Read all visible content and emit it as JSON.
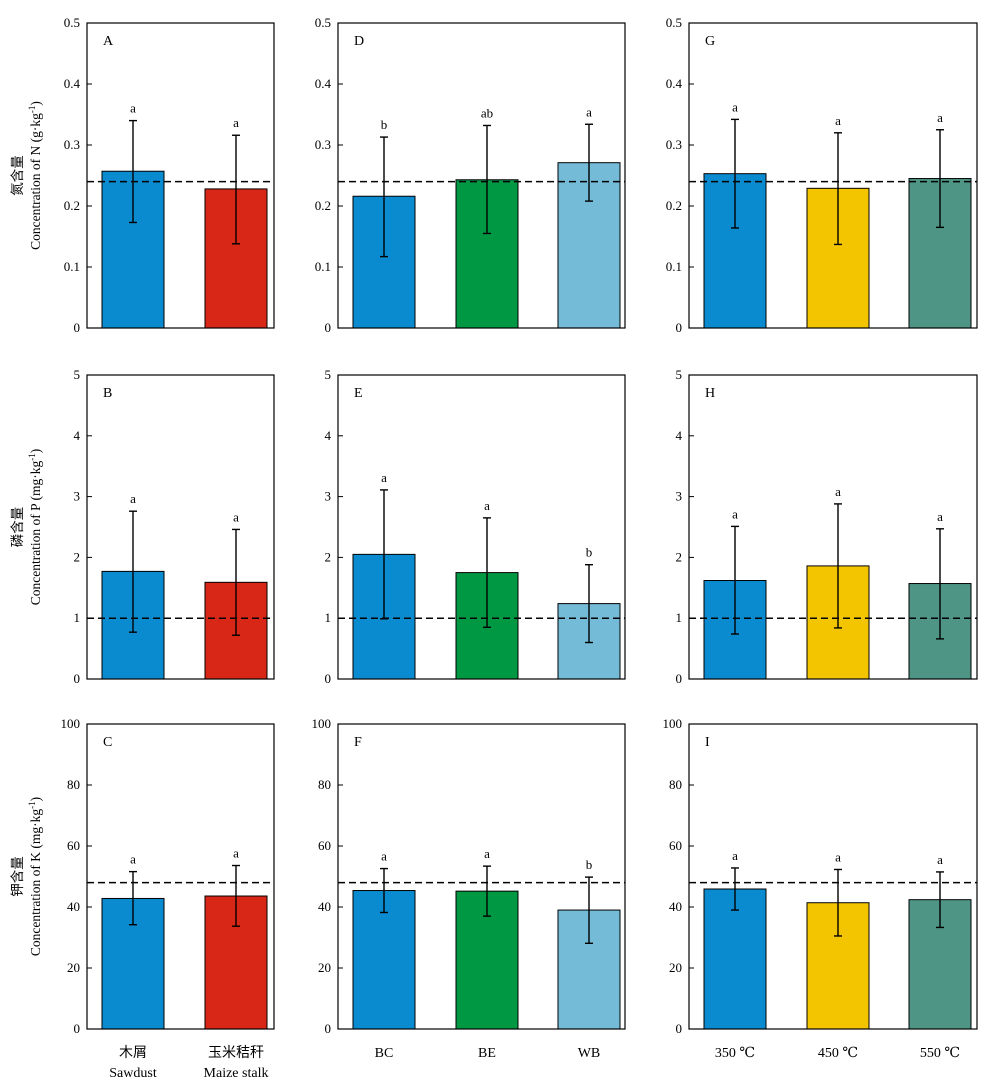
{
  "chart_data": {
    "type": "bar",
    "layout": "3x3 grid of bar charts; rows share a response variable, columns share a grouping factor",
    "colors": {
      "sawdust": "#0A8ACF",
      "maize_stalk": "#D92717",
      "BC": "#0A8ACF",
      "BE": "#009843",
      "WB": "#74BBD8",
      "350": "#0A8ACF",
      "450": "#F3C400",
      "550": "#4E9585"
    },
    "rows": [
      {
        "ylabel_cn": "氮含量",
        "ylabel_en": "Concentration of N (g·kg",
        "ylabel_sup": "-1",
        "ylabel_tail": ")",
        "ylim": [
          0,
          0.5
        ],
        "yticks": [
          "0",
          "0.1",
          "0.2",
          "0.3",
          "0.4",
          "0.5"
        ],
        "reference_line": 0.24
      },
      {
        "ylabel_cn": "磷含量",
        "ylabel_en": "Concentration of P (mg·kg",
        "ylabel_sup": "-1",
        "ylabel_tail": ")",
        "ylim": [
          0,
          5
        ],
        "yticks": [
          "0",
          "1",
          "2",
          "3",
          "4",
          "5"
        ],
        "reference_line": 1.0
      },
      {
        "ylabel_cn": "钾含量",
        "ylabel_en": "Concentration of K (mg·kg",
        "ylabel_sup": "-1",
        "ylabel_tail": ")",
        "ylim": [
          0,
          100
        ],
        "yticks": [
          "0",
          "20",
          "40",
          "60",
          "80",
          "100"
        ],
        "reference_line": 48
      }
    ],
    "columns": [
      {
        "categories": [
          {
            "cn": "木屑",
            "en": "Sawdust",
            "color_key": "sawdust"
          },
          {
            "cn": "玉米秸秆",
            "en": "Maize stalk",
            "color_key": "maize_stalk"
          }
        ]
      },
      {
        "categories": [
          {
            "cn": "",
            "en": "BC",
            "color_key": "BC"
          },
          {
            "cn": "",
            "en": "BE",
            "color_key": "BE"
          },
          {
            "cn": "",
            "en": "WB",
            "color_key": "WB"
          }
        ]
      },
      {
        "categories": [
          {
            "cn": "",
            "en": "350 ℃",
            "color_key": "350"
          },
          {
            "cn": "",
            "en": "450 ℃",
            "color_key": "450"
          },
          {
            "cn": "",
            "en": "550 ℃",
            "color_key": "550"
          }
        ]
      }
    ],
    "panels": [
      {
        "letter": "A",
        "row": 0,
        "col": 0,
        "values": [
          0.257,
          0.228
        ],
        "err_low": [
          0.173,
          0.138
        ],
        "err_high": [
          0.34,
          0.316
        ],
        "sig": [
          "a",
          "a"
        ]
      },
      {
        "letter": "D",
        "row": 0,
        "col": 1,
        "values": [
          0.216,
          0.243,
          0.271
        ],
        "err_low": [
          0.117,
          0.155,
          0.208
        ],
        "err_high": [
          0.313,
          0.332,
          0.334
        ],
        "sig": [
          "b",
          "ab",
          "a"
        ]
      },
      {
        "letter": "G",
        "row": 0,
        "col": 2,
        "values": [
          0.253,
          0.229,
          0.245
        ],
        "err_low": [
          0.164,
          0.137,
          0.165
        ],
        "err_high": [
          0.342,
          0.32,
          0.325
        ],
        "sig": [
          "a",
          "a",
          "a"
        ]
      },
      {
        "letter": "B",
        "row": 1,
        "col": 0,
        "values": [
          1.77,
          1.59
        ],
        "err_low": [
          0.77,
          0.72
        ],
        "err_high": [
          2.76,
          2.46
        ],
        "sig": [
          "a",
          "a"
        ]
      },
      {
        "letter": "E",
        "row": 1,
        "col": 1,
        "values": [
          2.05,
          1.75,
          1.24
        ],
        "err_low": [
          0.99,
          0.85,
          0.6
        ],
        "err_high": [
          3.11,
          2.65,
          1.88
        ],
        "sig": [
          "a",
          "a",
          "b"
        ]
      },
      {
        "letter": "H",
        "row": 1,
        "col": 2,
        "values": [
          1.62,
          1.86,
          1.57
        ],
        "err_low": [
          0.74,
          0.84,
          0.66
        ],
        "err_high": [
          2.51,
          2.88,
          2.47
        ],
        "sig": [
          "a",
          "a",
          "a"
        ]
      },
      {
        "letter": "C",
        "row": 2,
        "col": 0,
        "values": [
          42.8,
          43.6
        ],
        "err_low": [
          34.2,
          33.7
        ],
        "err_high": [
          51.6,
          53.6
        ],
        "sig": [
          "a",
          "a"
        ]
      },
      {
        "letter": "F",
        "row": 2,
        "col": 1,
        "values": [
          45.4,
          45.2,
          39.0
        ],
        "err_low": [
          38.2,
          37.0,
          28.1
        ],
        "err_high": [
          52.6,
          53.4,
          49.8
        ],
        "sig": [
          "a",
          "a",
          "b"
        ]
      },
      {
        "letter": "I",
        "row": 2,
        "col": 2,
        "values": [
          45.9,
          41.4,
          42.4
        ],
        "err_low": [
          39.0,
          30.5,
          33.3
        ],
        "err_high": [
          52.8,
          52.3,
          51.5
        ],
        "sig": [
          "a",
          "a",
          "a"
        ]
      }
    ]
  }
}
